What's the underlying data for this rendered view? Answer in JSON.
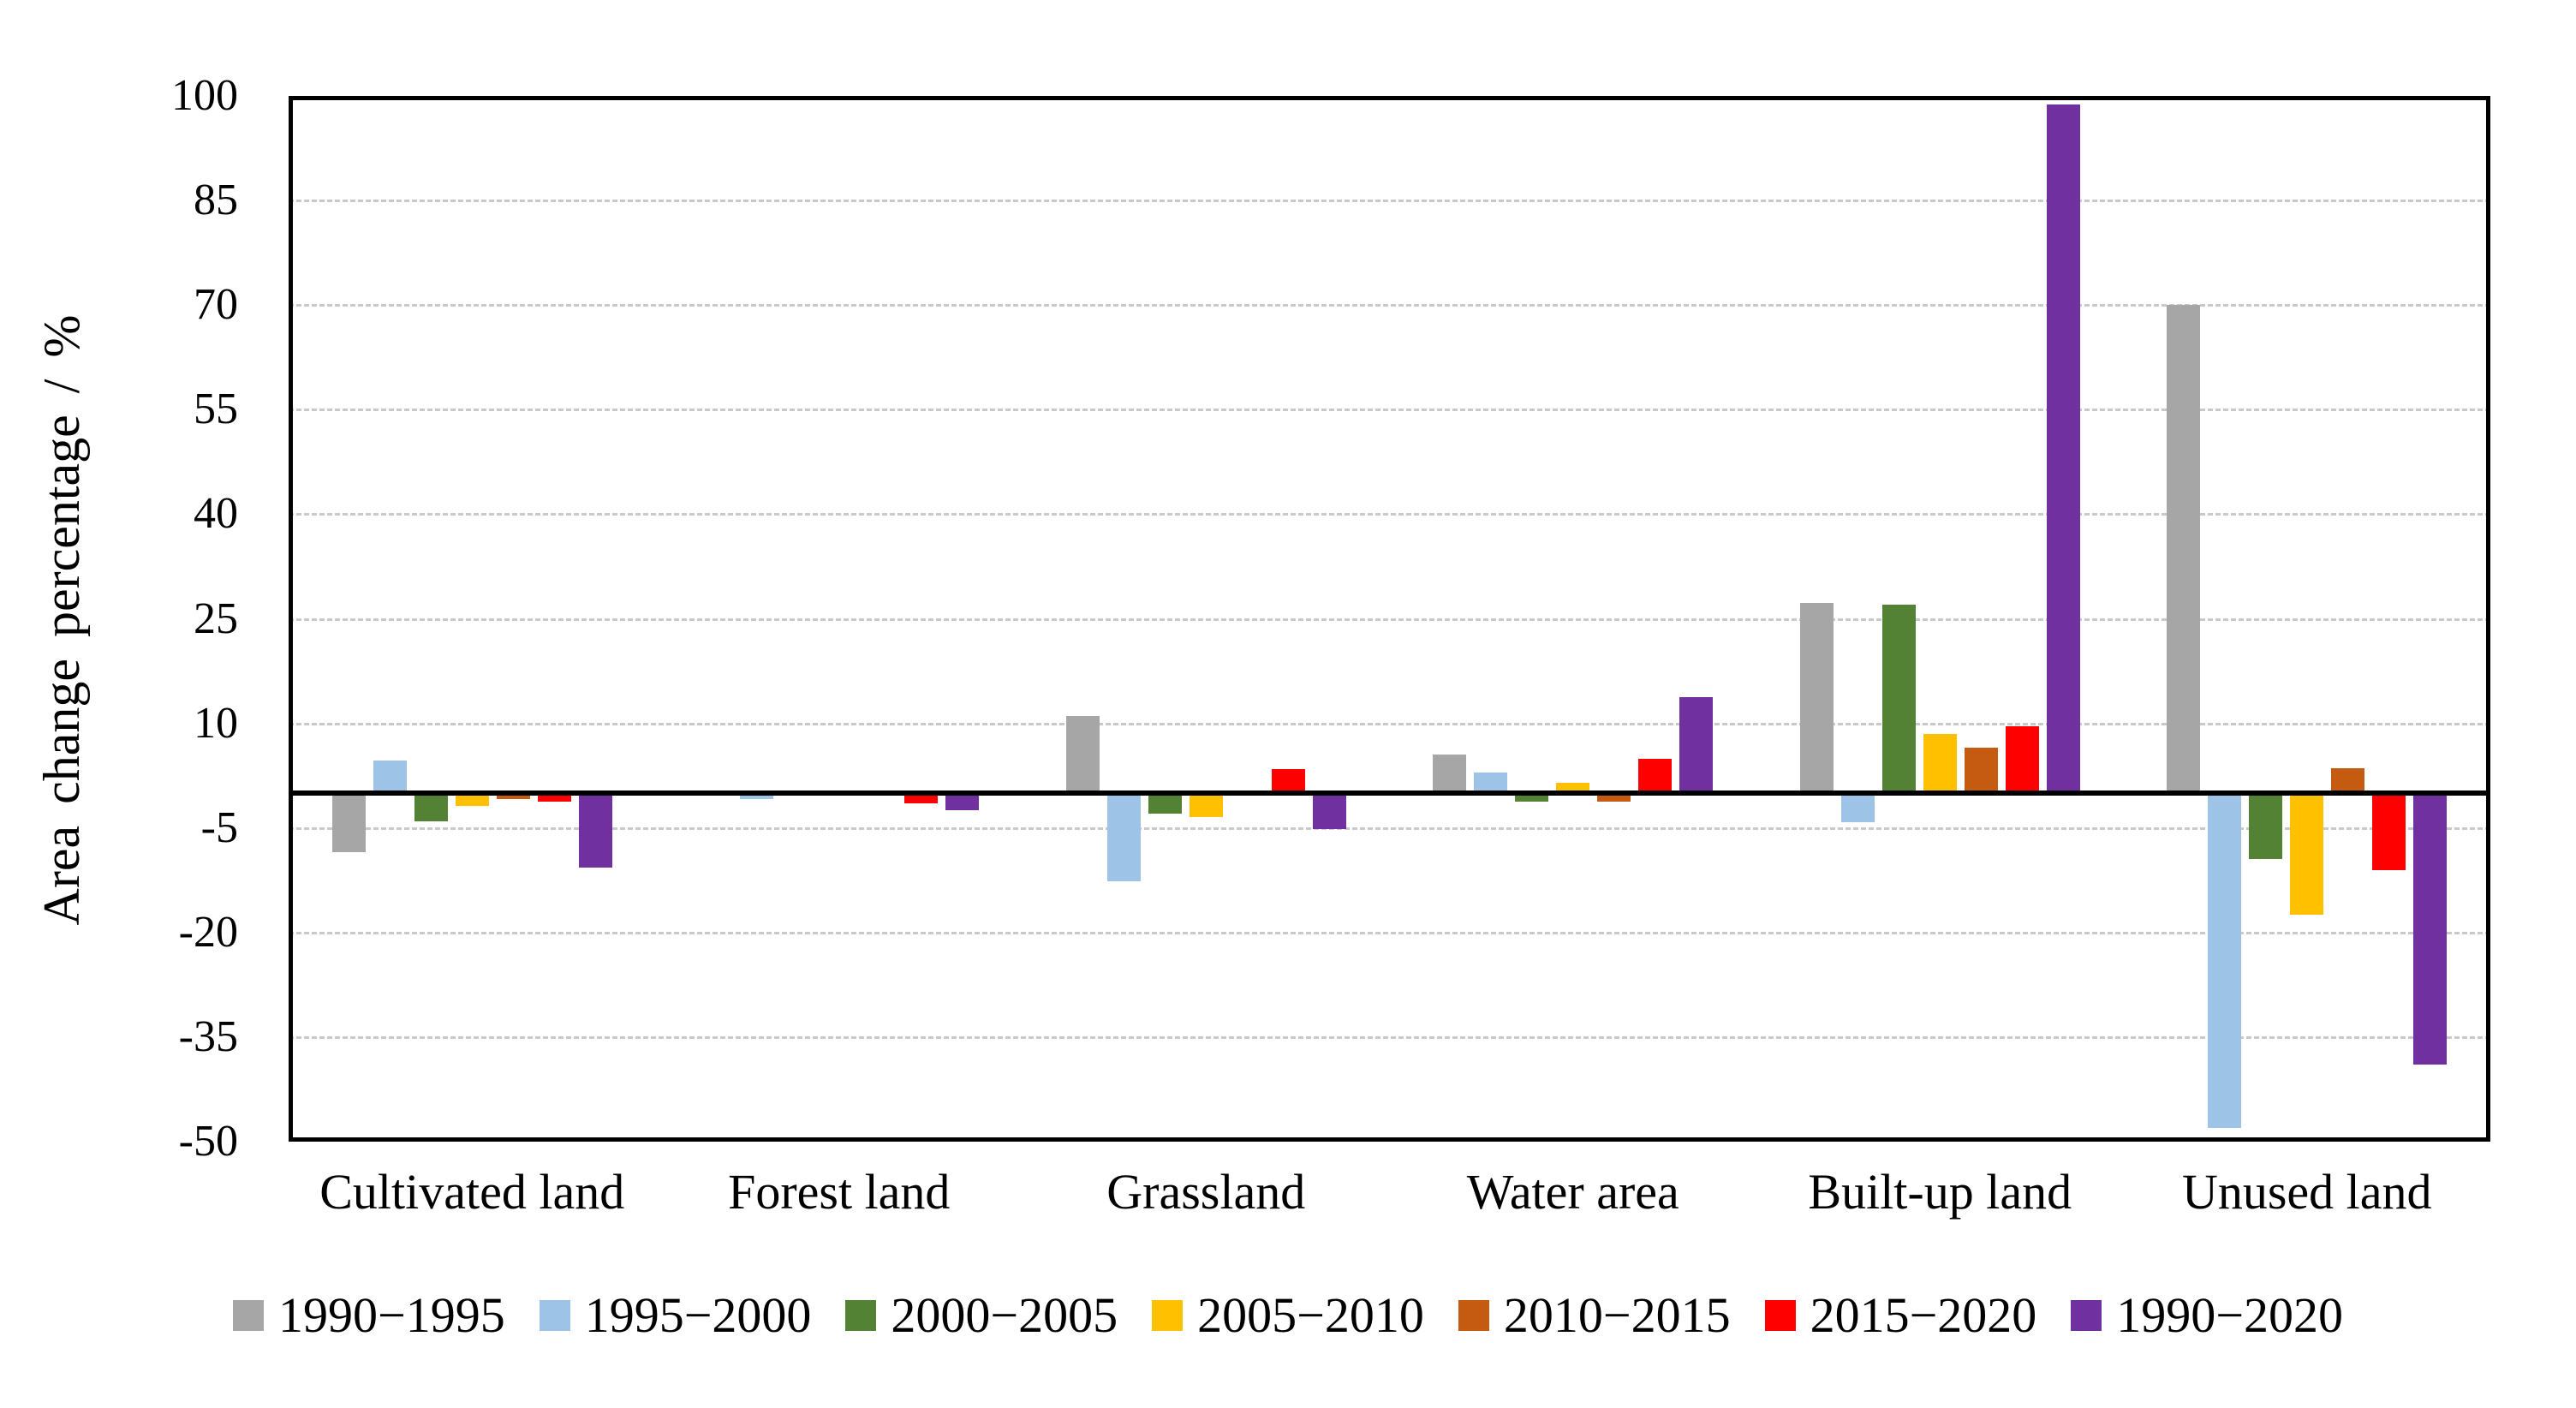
{
  "chart_data": {
    "type": "bar",
    "title": "",
    "ylabel": "Area change percentage / %",
    "xlabel": "",
    "ylim": [
      -50,
      100
    ],
    "y_ticks": [
      100,
      85,
      70,
      55,
      40,
      25,
      10,
      -5,
      -20,
      -35,
      -50
    ],
    "grid": "dashed horizontal major gridlines, solid black zero line, black plot border",
    "legend_position": "bottom",
    "categories": [
      "Cultivated land",
      "Forest land",
      "Grassland",
      "Water area",
      "Built-up land",
      "Unused land"
    ],
    "series": [
      {
        "name": "1990−1995",
        "color": "#a6a6a6",
        "values": [
          -8.5,
          0,
          11,
          5.5,
          27.3,
          70
        ]
      },
      {
        "name": "1995−2000",
        "color": "#9dc3e6",
        "values": [
          4.7,
          -0.8,
          -12.6,
          2.9,
          -4.2,
          -48
        ]
      },
      {
        "name": "2000−2005",
        "color": "#548235",
        "values": [
          -4,
          0,
          -3,
          -1.2,
          27,
          -9.5
        ]
      },
      {
        "name": "2005−2010",
        "color": "#ffc000",
        "values": [
          -1.8,
          0,
          -3.4,
          1.5,
          8.5,
          -17.5
        ]
      },
      {
        "name": "2010−2015",
        "color": "#c55a11",
        "values": [
          -0.8,
          0,
          0,
          -1.2,
          6.5,
          3.6
        ]
      },
      {
        "name": "2015−2020",
        "color": "#ff0000",
        "values": [
          -1.2,
          -1.5,
          3.4,
          4.9,
          9.6,
          -11
        ]
      },
      {
        "name": "1990−2020",
        "color": "#7030a0",
        "values": [
          -10.7,
          -2.4,
          -5.2,
          13.7,
          98.8,
          -39
        ]
      }
    ]
  }
}
